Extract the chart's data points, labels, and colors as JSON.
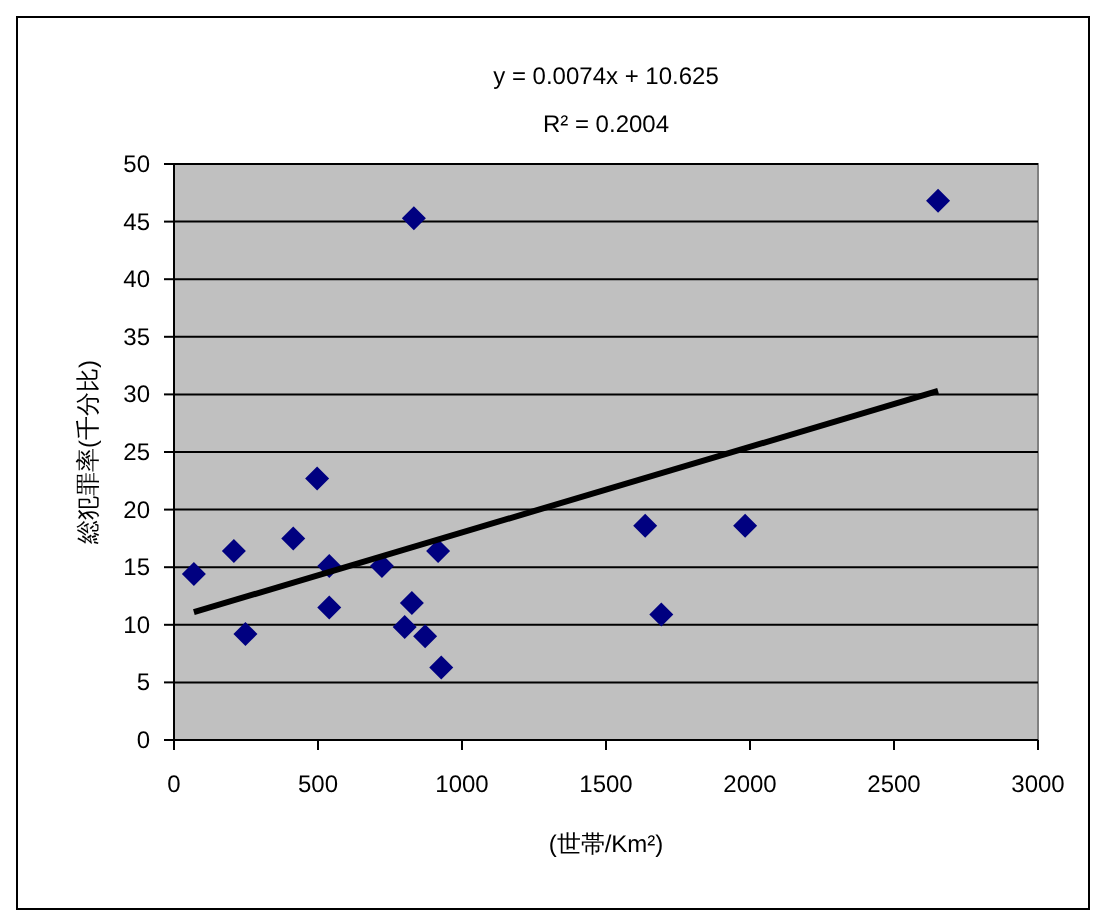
{
  "chart_data": {
    "type": "scatter",
    "annotations": [
      "y = 0.0074x + 10.625",
      "R² = 0.2004"
    ],
    "xlabel": "(世帯/Km²)",
    "ylabel": "総犯罪率(千分比)",
    "xlim": [
      0,
      3000
    ],
    "xticks": [
      0,
      500,
      1000,
      1500,
      2000,
      2500,
      3000
    ],
    "ylim": [
      0,
      50
    ],
    "yticks": [
      0,
      5,
      10,
      15,
      20,
      25,
      30,
      35,
      40,
      45,
      50
    ],
    "grid": "y",
    "marker": "diamond",
    "series": [
      {
        "color": "#000080",
        "x": [
          69,
          208,
          248,
          414,
          497,
          539,
          539,
          722,
          833,
          826,
          801,
          872,
          917,
          928,
          1636,
          1983,
          1692,
          2653
        ],
        "values": [
          14.4,
          16.4,
          9.2,
          17.5,
          22.7,
          15.1,
          11.5,
          15.1,
          45.3,
          11.9,
          9.8,
          9.0,
          16.4,
          6.3,
          18.6,
          18.6,
          10.9,
          46.8
        ]
      },
      {
        "type": "line",
        "color": "#000000",
        "marker": "none",
        "line_style": "solid",
        "x": [
          69,
          2653
        ],
        "values": [
          11.1,
          30.3
        ]
      }
    ]
  }
}
